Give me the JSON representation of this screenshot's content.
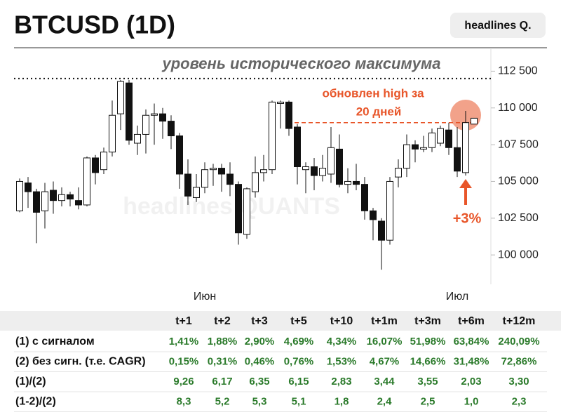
{
  "chart_data": {
    "type": "candlestick",
    "title": "BTCUSD (1D)",
    "annotation": "уровень исторического максимума",
    "note_lines": [
      "обновлен high за",
      "20 дней"
    ],
    "change_label": "+3%",
    "watermark": "headlines QUANTS",
    "ath_level": 112000,
    "prior_high_level": 109000,
    "up_color": "#ffffff",
    "down_color": "#111111",
    "accent_color": "#e8562a",
    "categories": [
      null,
      null,
      null,
      null,
      null,
      null,
      null,
      null,
      null,
      null,
      null,
      null,
      null,
      null,
      null,
      null,
      null,
      null,
      null,
      null,
      null,
      null,
      "Июн",
      null,
      null,
      null,
      null,
      null,
      null,
      null,
      null,
      null,
      null,
      null,
      null,
      null,
      null,
      null,
      null,
      null,
      null,
      null,
      null,
      null,
      null,
      null,
      null,
      null,
      null,
      null,
      null,
      null,
      "Июл",
      null,
      null
    ],
    "open": [
      103000,
      104900,
      104300,
      103000,
      104400,
      103700,
      104100,
      103700,
      103400,
      106600,
      105800,
      107000,
      109600,
      111700,
      107600,
      108200,
      109500,
      109600,
      109100,
      108100,
      105500,
      103900,
      104600,
      105800,
      105900,
      105500,
      104800,
      101400,
      104300,
      105600,
      105800,
      110300,
      110400,
      108700,
      105800,
      106000,
      105400,
      105500,
      107200,
      104800,
      105000,
      104800,
      103000,
      102300,
      101000,
      105300,
      105900,
      107500,
      107200,
      107300,
      107600,
      108500,
      107300,
      105600,
      108900
    ],
    "high": [
      105200,
      105300,
      104500,
      104900,
      105000,
      104600,
      104300,
      104600,
      106700,
      106800,
      107300,
      110500,
      111900,
      111900,
      108800,
      109900,
      110300,
      110000,
      109500,
      108300,
      106500,
      105500,
      106300,
      106200,
      106200,
      106300,
      105000,
      104600,
      106700,
      106800,
      110500,
      110500,
      110500,
      108900,
      106300,
      106600,
      106800,
      108700,
      108200,
      105900,
      106200,
      105300,
      103200,
      102500,
      105300,
      106500,
      108200,
      107800,
      108100,
      108600,
      108800,
      109000,
      108700,
      109800,
      109300
    ],
    "low": [
      102900,
      103200,
      100800,
      101800,
      102800,
      103300,
      103300,
      103100,
      103300,
      104800,
      105500,
      106700,
      108500,
      107500,
      106800,
      106900,
      107500,
      107900,
      107200,
      104500,
      103400,
      103600,
      104200,
      104700,
      104300,
      104000,
      100700,
      101100,
      103900,
      105000,
      105500,
      108600,
      108100,
      104800,
      104200,
      104400,
      105000,
      104900,
      104600,
      104200,
      104400,
      102400,
      101000,
      99000,
      100700,
      104600,
      105300,
      106300,
      107000,
      107000,
      107400,
      106800,
      105300,
      105400,
      108900
    ],
    "close": [
      105000,
      104300,
      102900,
      104300,
      103700,
      104100,
      103800,
      103400,
      106600,
      105600,
      107000,
      109500,
      111800,
      107800,
      108200,
      109500,
      109600,
      109100,
      108100,
      105500,
      104000,
      104600,
      105800,
      105900,
      105500,
      104800,
      101500,
      104500,
      105600,
      105800,
      110400,
      110400,
      108600,
      106000,
      106000,
      105400,
      105900,
      107300,
      104800,
      105000,
      104800,
      103000,
      102400,
      101000,
      105000,
      105900,
      107500,
      107200,
      107300,
      108300,
      108600,
      107300,
      105700,
      109000,
      109300
    ],
    "ylim": [
      98000,
      114000
    ],
    "yticks": [
      {
        "value": 100000,
        "label": "100 000"
      },
      {
        "value": 102500,
        "label": "102 500"
      },
      {
        "value": 105000,
        "label": "105 000"
      },
      {
        "value": 107500,
        "label": "107 500"
      },
      {
        "value": 110000,
        "label": "110 000"
      },
      {
        "value": 112500,
        "label": "112 500"
      }
    ]
  },
  "badge": "headlines Q.",
  "table": {
    "columns": [
      "t+1",
      "t+2",
      "t+3",
      "t+5",
      "t+10",
      "t+1m",
      "t+3m",
      "t+6m",
      "t+12m"
    ],
    "rows": [
      {
        "label": "(1) с сигналом",
        "values": [
          "1,41%",
          "1,88%",
          "2,90%",
          "4,69%",
          "4,34%",
          "16,07%",
          "51,98%",
          "63,84%",
          "240,09%"
        ]
      },
      {
        "label": "(2) без сигн. (т.е. CAGR)",
        "values": [
          "0,15%",
          "0,31%",
          "0,46%",
          "0,76%",
          "1,53%",
          "4,67%",
          "14,66%",
          "31,48%",
          "72,86%"
        ]
      },
      {
        "label": "(1)/(2)",
        "values": [
          "9,26",
          "6,17",
          "6,35",
          "6,15",
          "2,83",
          "3,44",
          "3,55",
          "2,03",
          "3,30"
        ]
      },
      {
        "label": "(1-2)/(2)",
        "values": [
          "8,3",
          "5,2",
          "5,3",
          "5,1",
          "1,8",
          "2,4",
          "2,5",
          "1,0",
          "2,3"
        ]
      }
    ]
  }
}
